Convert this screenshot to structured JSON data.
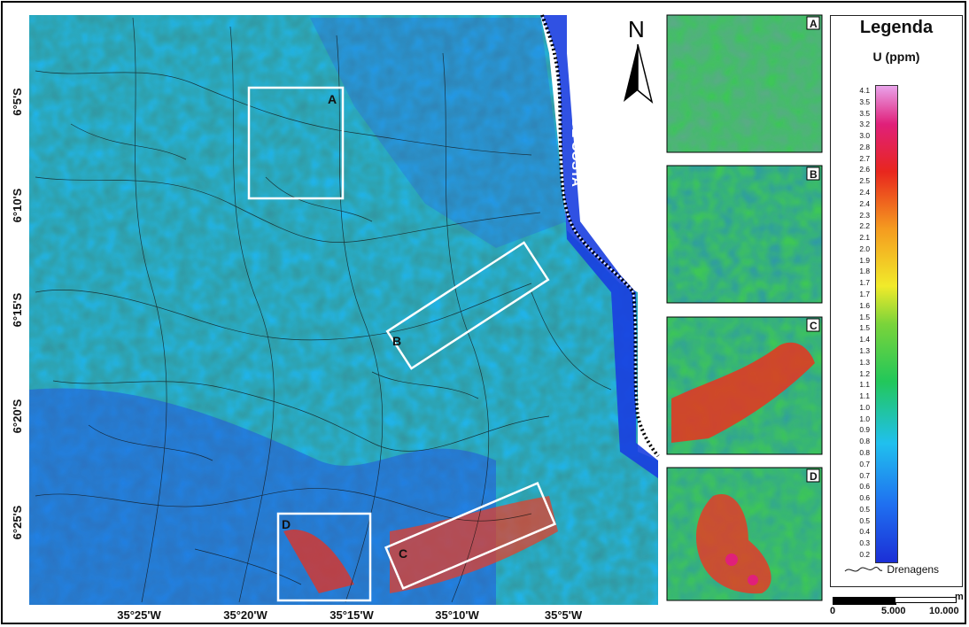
{
  "map": {
    "north_label": "N",
    "coast_label": "LINHA DE COSTA",
    "lat_labels": [
      "6°5'S",
      "6°10'S",
      "6°15'S",
      "6°20'S",
      "6°25'S"
    ],
    "lon_labels": [
      "35°25'W",
      "35°20'W",
      "35°15'W",
      "35°10'W",
      "35°5'W"
    ],
    "boxes": [
      "A",
      "B",
      "C",
      "D"
    ]
  },
  "insets": [
    "A",
    "B",
    "C",
    "D"
  ],
  "legend": {
    "title": "Legenda",
    "subtitle": "U (ppm)",
    "ticks": [
      "4.1",
      "3.5",
      "3.5",
      "3.2",
      "3.0",
      "2.8",
      "2.7",
      "2.6",
      "2.5",
      "2.4",
      "2.4",
      "2.3",
      "2.2",
      "2.1",
      "2.0",
      "1.9",
      "1.8",
      "1.7",
      "1.7",
      "1.6",
      "1.5",
      "1.5",
      "1.4",
      "1.3",
      "1.3",
      "1.2",
      "1.1",
      "1.1",
      "1.0",
      "1.0",
      "0.9",
      "0.8",
      "0.8",
      "0.7",
      "0.7",
      "0.6",
      "0.6",
      "0.5",
      "0.5",
      "0.4",
      "0.3",
      "0.2"
    ],
    "drainage_label": "Drenagens"
  },
  "scale_bar": {
    "unit": "m",
    "labels": [
      "0",
      "5.000",
      "10.000"
    ]
  },
  "colors": {
    "low": "#1f35d8",
    "mid_low": "#2fbfe8",
    "mid": "#4cc94a",
    "mid_high": "#f2e22a",
    "high": "#e7342a",
    "very_high": "#e56fe0"
  }
}
